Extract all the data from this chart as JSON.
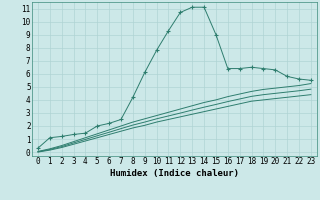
{
  "xlabel": "Humidex (Indice chaleur)",
  "background_color": "#cce8e8",
  "grid_color": "#b0d4d4",
  "line_color": "#2e7d6e",
  "xlim": [
    -0.5,
    23.5
  ],
  "ylim": [
    -0.3,
    11.5
  ],
  "xticks": [
    0,
    1,
    2,
    3,
    4,
    5,
    6,
    7,
    8,
    9,
    10,
    11,
    12,
    13,
    14,
    15,
    16,
    17,
    18,
    19,
    20,
    21,
    22,
    23
  ],
  "yticks": [
    0,
    1,
    2,
    3,
    4,
    5,
    6,
    7,
    8,
    9,
    10,
    11
  ],
  "series": [
    {
      "x": [
        0,
        1,
        2,
        3,
        4,
        5,
        6,
        7,
        8,
        9,
        10,
        11,
        12,
        13,
        14,
        15,
        16,
        17,
        18,
        19,
        20,
        21,
        22,
        23
      ],
      "y": [
        0.3,
        1.1,
        1.2,
        1.35,
        1.45,
        2.0,
        2.2,
        2.5,
        4.2,
        6.1,
        7.8,
        9.3,
        10.7,
        11.1,
        11.1,
        9.0,
        6.4,
        6.4,
        6.5,
        6.4,
        6.3,
        5.8,
        5.6,
        5.5
      ],
      "marker": "+"
    },
    {
      "x": [
        0,
        1,
        2,
        3,
        4,
        5,
        6,
        7,
        8,
        9,
        10,
        11,
        12,
        13,
        14,
        15,
        16,
        17,
        18,
        19,
        20,
        21,
        22,
        23
      ],
      "y": [
        0.05,
        0.25,
        0.5,
        0.8,
        1.1,
        1.4,
        1.7,
        2.0,
        2.3,
        2.55,
        2.8,
        3.05,
        3.3,
        3.55,
        3.8,
        4.0,
        4.25,
        4.45,
        4.65,
        4.8,
        4.9,
        5.0,
        5.1,
        5.25
      ],
      "marker": null
    },
    {
      "x": [
        0,
        1,
        2,
        3,
        4,
        5,
        6,
        7,
        8,
        9,
        10,
        11,
        12,
        13,
        14,
        15,
        16,
        17,
        18,
        19,
        20,
        21,
        22,
        23
      ],
      "y": [
        0.0,
        0.15,
        0.35,
        0.6,
        0.85,
        1.1,
        1.35,
        1.6,
        1.85,
        2.05,
        2.3,
        2.5,
        2.7,
        2.9,
        3.1,
        3.3,
        3.5,
        3.7,
        3.9,
        4.0,
        4.1,
        4.2,
        4.3,
        4.4
      ],
      "marker": null
    },
    {
      "x": [
        0,
        1,
        2,
        3,
        4,
        5,
        6,
        7,
        8,
        9,
        10,
        11,
        12,
        13,
        14,
        15,
        16,
        17,
        18,
        19,
        20,
        21,
        22,
        23
      ],
      "y": [
        0.02,
        0.2,
        0.42,
        0.7,
        0.97,
        1.25,
        1.52,
        1.8,
        2.07,
        2.3,
        2.55,
        2.77,
        2.99,
        3.22,
        3.44,
        3.65,
        3.87,
        4.07,
        4.27,
        4.4,
        4.5,
        4.6,
        4.7,
        4.82
      ],
      "marker": null
    }
  ],
  "tick_fontsize": 5.5,
  "label_fontsize": 6.5
}
